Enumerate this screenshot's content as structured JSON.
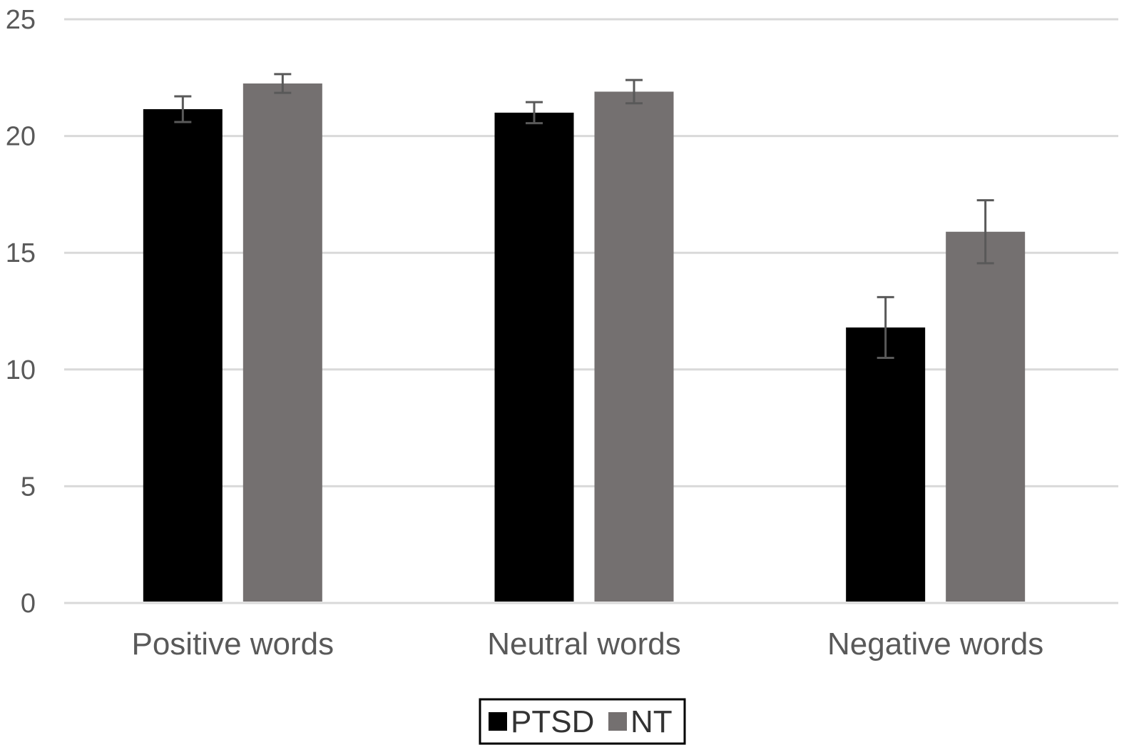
{
  "chart_data": {
    "type": "bar",
    "title": "",
    "xlabel": "",
    "ylabel": "",
    "categories": [
      "Positive words",
      "Neutral words",
      "Negative words"
    ],
    "series": [
      {
        "name": "PTSD",
        "color": "#000000",
        "values": [
          21.15,
          21.0,
          11.8
        ],
        "errors": [
          0.55,
          0.45,
          1.3
        ]
      },
      {
        "name": "NT",
        "color": "#747070",
        "values": [
          22.25,
          21.9,
          15.9
        ],
        "errors": [
          0.4,
          0.5,
          1.35
        ]
      }
    ],
    "ylim": [
      0,
      25
    ],
    "yticks": [
      0,
      5,
      10,
      15,
      20,
      25
    ],
    "grid": true,
    "legend_position": "bottom-center",
    "colors": {
      "gridline": "#d9d9d9",
      "error_bar": "#595959",
      "legend_border": "#000000"
    }
  }
}
